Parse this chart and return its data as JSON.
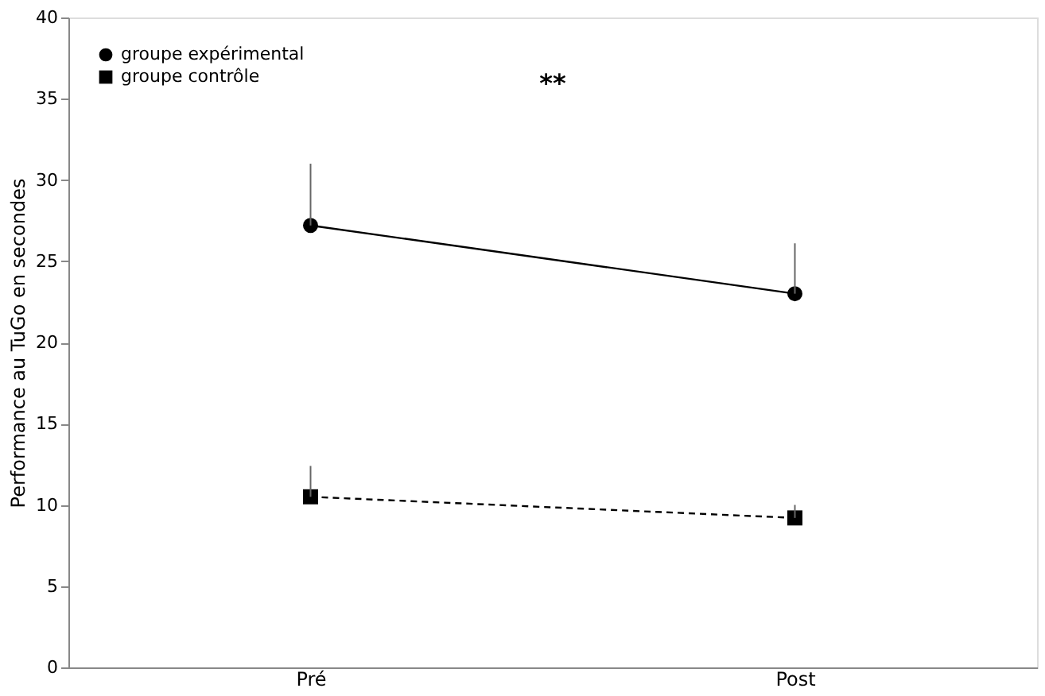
{
  "chart_data": {
    "type": "line",
    "ylabel": "Performance au TuGo en secondes",
    "categories": [
      "Pré",
      "Post"
    ],
    "series": [
      {
        "name": "groupe expérimental",
        "color": "#000000",
        "values": [
          27.2,
          23.0
        ],
        "errors": [
          [
            27.2,
            31.0
          ],
          [
            23.0,
            26.1
          ]
        ],
        "marker": "circle",
        "line_style": "solid"
      },
      {
        "name": "groupe contrôle",
        "color": "#000000",
        "values": [
          10.5,
          9.2
        ],
        "errors": [
          [
            10.5,
            12.4
          ],
          [
            9.2,
            10.0
          ]
        ],
        "marker": "square",
        "line_style": "dashed"
      }
    ],
    "ylim": [
      0,
      40
    ],
    "yticks": [
      0,
      5,
      10,
      15,
      20,
      25,
      30,
      35,
      40
    ],
    "grid": false,
    "legend": "top left",
    "annotations": [
      "**"
    ]
  }
}
